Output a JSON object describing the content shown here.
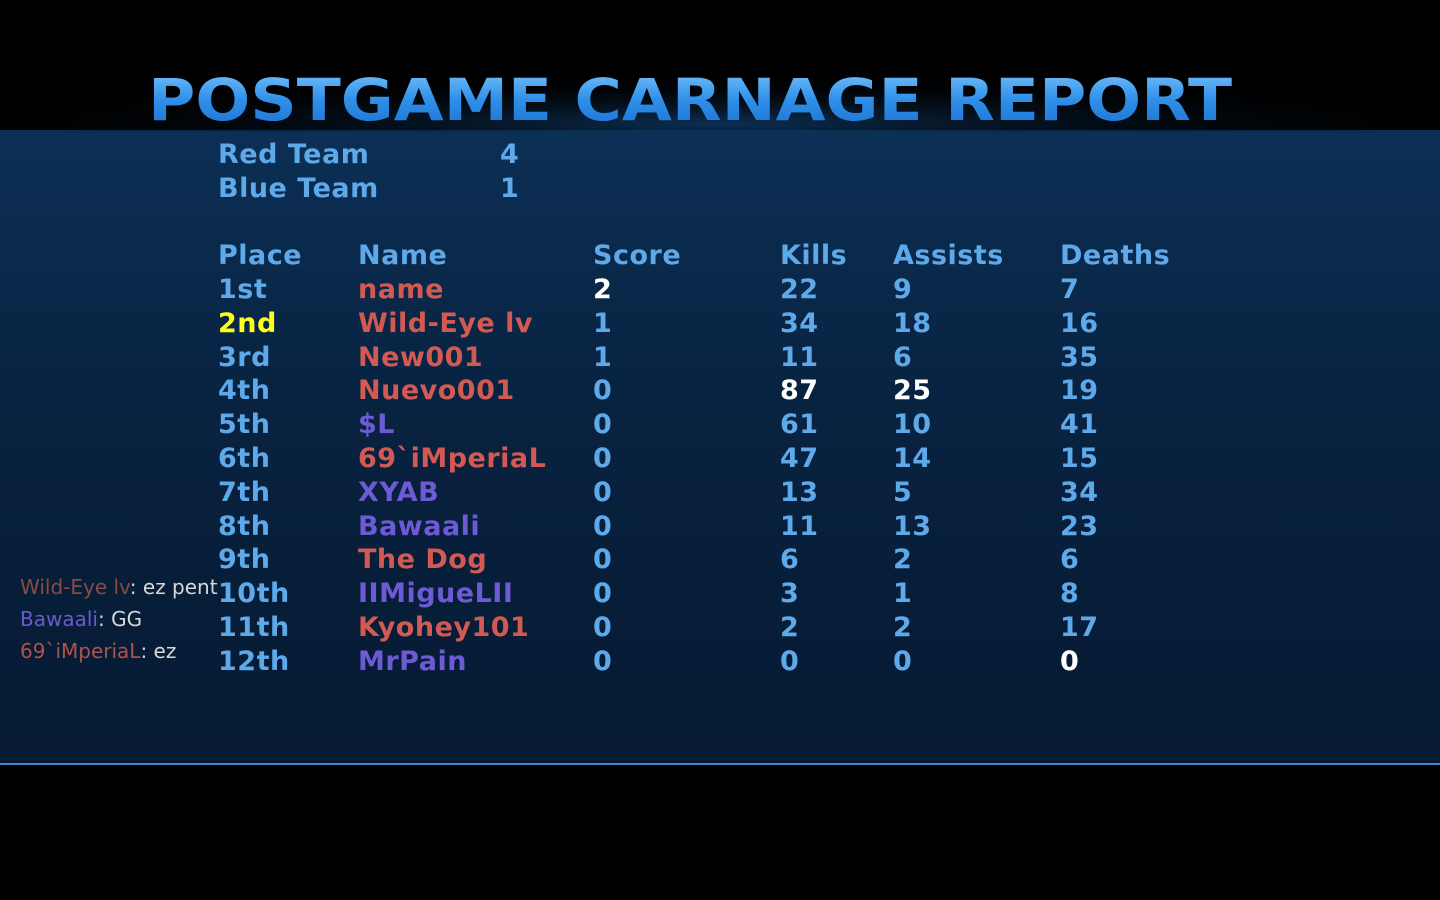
{
  "title": "POSTGAME CARNAGE REPORT",
  "teams": [
    {
      "name": "Red Team",
      "score": "4"
    },
    {
      "name": "Blue Team",
      "score": "1"
    }
  ],
  "table": {
    "headers": [
      "Place",
      "Name",
      "Score",
      "Kills",
      "Assists",
      "Deaths"
    ],
    "rows": [
      {
        "place": "1st",
        "name": "name",
        "score": "2",
        "kills": "22",
        "assists": "9",
        "deaths": "7",
        "color": "#d25a52"
      },
      {
        "place": "2nd",
        "name": "Wild-Eye lv",
        "score": "1",
        "kills": "34",
        "assists": "18",
        "deaths": "16",
        "color": "#d25a52",
        "place_color": "#ffff1a"
      },
      {
        "place": "3rd",
        "name": "New001",
        "score": "1",
        "kills": "11",
        "assists": "6",
        "deaths": "35",
        "color": "#d25a52"
      },
      {
        "place": "4th",
        "name": "Nuevo001",
        "score": "0",
        "kills": "87",
        "assists": "25",
        "deaths": "19",
        "color": "#d25a52"
      },
      {
        "place": "5th",
        "name": "$L",
        "score": "0",
        "kills": "61",
        "assists": "10",
        "deaths": "41",
        "color": "#6f5ad6"
      },
      {
        "place": "6th",
        "name": "69`iMperiaL",
        "score": "0",
        "kills": "47",
        "assists": "14",
        "deaths": "15",
        "color": "#d25a52"
      },
      {
        "place": "7th",
        "name": "XYAB",
        "score": "0",
        "kills": "13",
        "assists": "5",
        "deaths": "34",
        "color": "#6f5ad6"
      },
      {
        "place": "8th",
        "name": "Bawaali",
        "score": "0",
        "kills": "11",
        "assists": "13",
        "deaths": "23",
        "color": "#6f5ad6"
      },
      {
        "place": "9th",
        "name": "The Dog",
        "score": "0",
        "kills": "6",
        "assists": "2",
        "deaths": "6",
        "color": "#d25a52"
      },
      {
        "place": "10th",
        "name": "IIMigueLII",
        "score": "0",
        "kills": "3",
        "assists": "1",
        "deaths": "8",
        "color": "#6f5ad6"
      },
      {
        "place": "11th",
        "name": "Kyohey101",
        "score": "0",
        "kills": "2",
        "assists": "2",
        "deaths": "17",
        "color": "#d25a52"
      },
      {
        "place": "12th",
        "name": "MrPain",
        "score": "0",
        "kills": "0",
        "assists": "0",
        "deaths": "0",
        "color": "#6f5ad6"
      }
    ]
  },
  "chat": [
    {
      "name": "Wild-Eye lv",
      "message": ": ez pent",
      "color": "#8a4a44"
    },
    {
      "name": "Bawaali",
      "message": ": GG",
      "color": "#6a5ad0"
    },
    {
      "name": "69`iMperiaL",
      "message": ": ez",
      "color": "#b0524a"
    }
  ]
}
